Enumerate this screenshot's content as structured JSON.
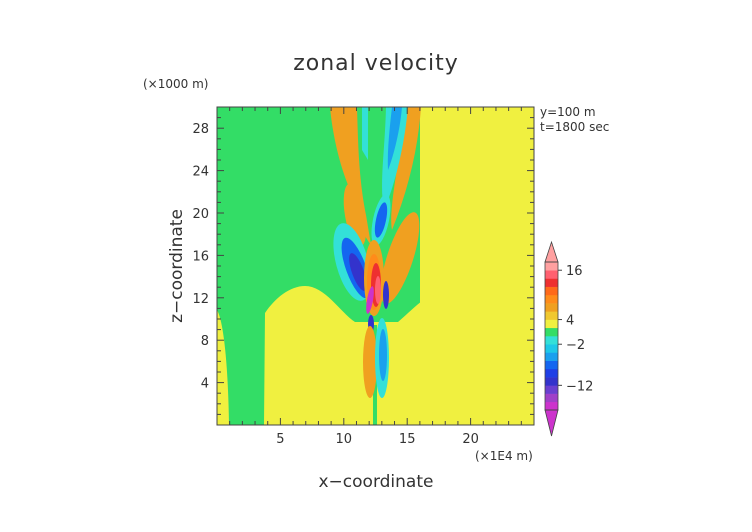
{
  "chart_data": {
    "type": "heatmap",
    "title": "zonal velocity",
    "xlabel": "x−coordinate",
    "ylabel": "z−coordinate",
    "x_unit": "(×1E4 m)",
    "y_unit": "(×1000 m)",
    "xlim": [
      0,
      25
    ],
    "ylim": [
      0,
      30
    ],
    "x_ticks": [
      5,
      10,
      15,
      20
    ],
    "x_tick_labels": [
      "5",
      "10",
      "15",
      "20"
    ],
    "y_ticks": [
      4,
      8,
      12,
      16,
      20,
      24,
      28
    ],
    "y_tick_labels": [
      "4",
      "8",
      "12",
      "16",
      "20",
      "24",
      "28"
    ],
    "annotations": [
      "y=100 m",
      "t=1800 sec"
    ],
    "colorbar": {
      "levels": [
        -20,
        -16,
        -14,
        -12,
        -10,
        -8,
        -6,
        -4,
        -2,
        0,
        2,
        4,
        6,
        8,
        10,
        12,
        14,
        16,
        18
      ],
      "colors": [
        "#cc33cc",
        "#a040c8",
        "#6a3fd0",
        "#3333cc",
        "#1f3fe6",
        "#1466f0",
        "#1aa0ee",
        "#1ec8e8",
        "#33e0d8",
        "#33dd66",
        "#f0f040",
        "#f0c830",
        "#f0a020",
        "#ff8c1a",
        "#ff6a1a",
        "#ee3030",
        "#ff6070",
        "#ffa0a0"
      ],
      "tick_values": [
        16,
        4,
        -2,
        -12
      ],
      "tick_labels": [
        "16",
        "4",
        "−2",
        "−12"
      ],
      "extend": "both"
    },
    "grid": false
  }
}
